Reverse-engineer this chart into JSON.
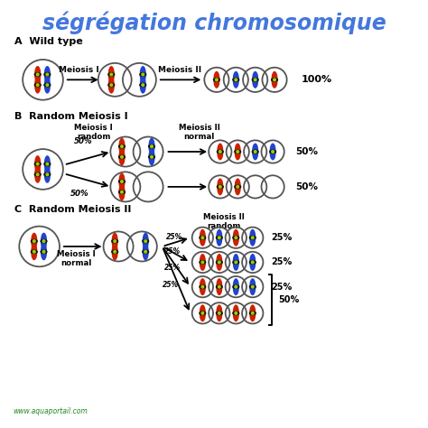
{
  "title": "ségrégation chromosomique",
  "title_color": "#4477dd",
  "bg_color": "#ffffff",
  "watermark": "www.aquaportail.com",
  "section_A": "A  Wild type",
  "section_B": "B  Random Meiosis I",
  "section_C": "C  Random Meiosis II",
  "red": "#cc2200",
  "blue": "#2244cc",
  "black": "#111111",
  "green": "#99cc00",
  "gray": "#555555",
  "figsize": [
    4.74,
    4.74
  ],
  "dpi": 100,
  "xlim": [
    0,
    474
  ],
  "ylim": [
    0,
    474
  ]
}
